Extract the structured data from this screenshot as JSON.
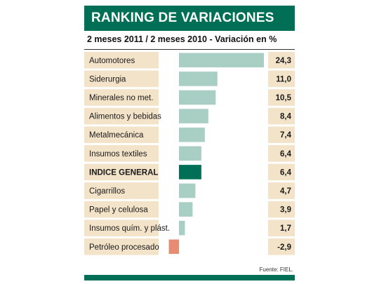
{
  "title": "RANKING DE VARIACIONES",
  "subtitle": "2 meses 2011 / 2 meses 2010 - Variación en %",
  "source": "Fuente: FIEL.",
  "colors": {
    "brand": "#006f55",
    "label_bg": "#f3e3c9",
    "bar_default": "#a9cec3",
    "bar_highlight": "#006f55",
    "bar_negative": "#e58c72"
  },
  "chart_data": {
    "type": "bar",
    "orientation": "horizontal",
    "title": "RANKING DE VARIACIONES",
    "subtitle": "2 meses 2011 / 2 meses 2010 - Variación en %",
    "categories": [
      "Automotores",
      "Siderurgia",
      "Minerales no met.",
      "Alimentos y bebidas",
      "Metalmecánica",
      "Insumos textiles",
      "INDICE GENERAL",
      "Cigarrillos",
      "Papel y celulosa",
      "Insumos quím. y plást.",
      "Petróleo procesado"
    ],
    "values": [
      24.3,
      11.0,
      10.5,
      8.4,
      7.4,
      6.4,
      6.4,
      4.7,
      3.9,
      1.7,
      -2.9
    ],
    "value_labels": [
      "24,3",
      "11,0",
      "10,5",
      "8,4",
      "7,4",
      "6,4",
      "6,4",
      "4,7",
      "3,9",
      "1,7",
      "-2,9"
    ],
    "highlight": "INDICE GENERAL",
    "xlim": [
      -2.9,
      24.3
    ],
    "grid": false,
    "legend": false
  }
}
